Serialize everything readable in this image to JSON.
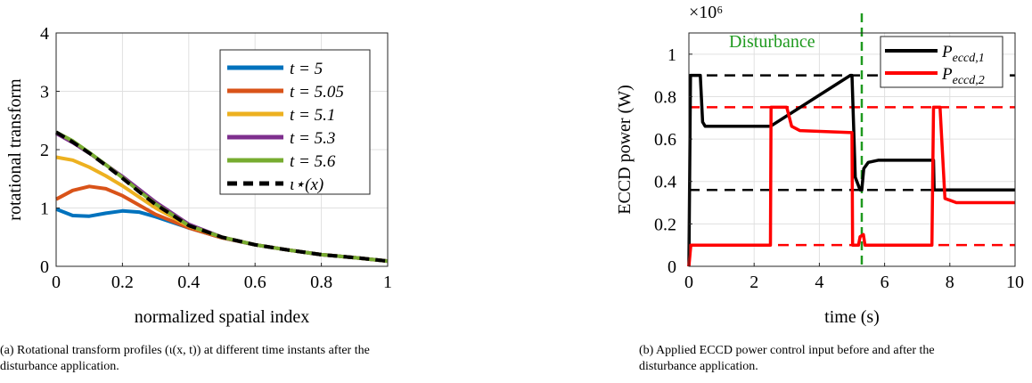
{
  "chart_data": [
    {
      "type": "line",
      "xlabel": "normalized spatial index",
      "ylabel": "rotational transform",
      "xlim": [
        0,
        1
      ],
      "ylim": [
        0,
        4
      ],
      "xticks": [
        "0",
        "0.2",
        "0.4",
        "0.6",
        "0.8",
        "1"
      ],
      "yticks": [
        "0",
        "1",
        "2",
        "3",
        "4"
      ],
      "grid": true,
      "legend_position": "top-right",
      "series": [
        {
          "name": "t = 5",
          "color": "#0072BD",
          "x": [
            0,
            0.05,
            0.1,
            0.15,
            0.2,
            0.25,
            0.3,
            0.4,
            0.5,
            0.6,
            0.7,
            0.8,
            0.9,
            1.0
          ],
          "y": [
            0.98,
            0.87,
            0.86,
            0.91,
            0.95,
            0.93,
            0.85,
            0.66,
            0.49,
            0.37,
            0.28,
            0.2,
            0.15,
            0.09
          ]
        },
        {
          "name": "t = 5.05",
          "color": "#D95319",
          "x": [
            0,
            0.05,
            0.1,
            0.15,
            0.2,
            0.25,
            0.3,
            0.4,
            0.5,
            0.6,
            0.7,
            0.8,
            0.9,
            1.0
          ],
          "y": [
            1.15,
            1.3,
            1.37,
            1.33,
            1.21,
            1.05,
            0.89,
            0.66,
            0.49,
            0.37,
            0.28,
            0.2,
            0.15,
            0.09
          ]
        },
        {
          "name": "t = 5.1",
          "color": "#EDB120",
          "x": [
            0,
            0.05,
            0.1,
            0.15,
            0.2,
            0.25,
            0.3,
            0.4,
            0.5,
            0.6,
            0.7,
            0.8,
            0.9,
            1.0
          ],
          "y": [
            1.87,
            1.82,
            1.7,
            1.55,
            1.38,
            1.19,
            1.0,
            0.69,
            0.5,
            0.37,
            0.28,
            0.2,
            0.15,
            0.09
          ]
        },
        {
          "name": "t = 5.3",
          "color": "#7E2F8E",
          "x": [
            0,
            0.05,
            0.1,
            0.15,
            0.2,
            0.25,
            0.3,
            0.4,
            0.5,
            0.6,
            0.7,
            0.8,
            0.9,
            1.0
          ],
          "y": [
            2.28,
            2.12,
            1.94,
            1.74,
            1.54,
            1.32,
            1.1,
            0.72,
            0.5,
            0.37,
            0.28,
            0.2,
            0.15,
            0.09
          ]
        },
        {
          "name": "t = 5.6",
          "color": "#77AC30",
          "x": [
            0,
            0.05,
            0.1,
            0.15,
            0.2,
            0.25,
            0.3,
            0.4,
            0.5,
            0.6,
            0.7,
            0.8,
            0.9,
            1.0
          ],
          "y": [
            2.3,
            2.15,
            1.95,
            1.74,
            1.52,
            1.29,
            1.07,
            0.7,
            0.5,
            0.37,
            0.28,
            0.2,
            0.15,
            0.09
          ]
        },
        {
          "name": "ι*(x)",
          "color": "#000000",
          "dashed": true,
          "x": [
            0,
            0.05,
            0.1,
            0.15,
            0.2,
            0.25,
            0.3,
            0.4,
            0.5,
            0.6,
            0.7,
            0.8,
            0.9,
            1.0
          ],
          "y": [
            2.3,
            2.13,
            1.94,
            1.73,
            1.51,
            1.28,
            1.06,
            0.7,
            0.5,
            0.37,
            0.28,
            0.2,
            0.15,
            0.09
          ]
        }
      ],
      "legend_labels": [
        "t = 5",
        "t = 5.05",
        "t = 5.1",
        "t = 5.3",
        "t = 5.6",
        "ι⋆(x)"
      ],
      "caption": "(a) Rotational transform profiles (ι(x, t)) at different time instants after the disturbance application."
    },
    {
      "type": "line",
      "xlabel": "time (s)",
      "ylabel": "ECCD power (W)",
      "multiplier": "×10⁶",
      "xlim": [
        0,
        10
      ],
      "ylim": [
        0,
        1.1
      ],
      "xticks": [
        "0",
        "2",
        "4",
        "6",
        "8",
        "10"
      ],
      "yticks": [
        "0",
        "0.2",
        "0.4",
        "0.6",
        "0.8",
        "1"
      ],
      "grid": true,
      "legend_position": "top-right",
      "annotation": "Disturbance",
      "disturbance_time": 5.3,
      "series": [
        {
          "name": "P_eccd,1",
          "color": "#000000",
          "x": [
            0,
            0.05,
            0.1,
            0.35,
            0.42,
            0.5,
            2.5,
            4.95,
            5.0,
            5.1,
            5.25,
            5.3,
            5.36,
            5.5,
            5.8,
            6.0,
            7.5,
            7.52,
            10
          ],
          "y": [
            0.0,
            0.9,
            0.9,
            0.9,
            0.68,
            0.66,
            0.66,
            0.9,
            0.9,
            0.42,
            0.36,
            0.36,
            0.46,
            0.49,
            0.5,
            0.5,
            0.5,
            0.36,
            0.36
          ]
        },
        {
          "name": "P_eccd,2",
          "color": "#FF0000",
          "x": [
            0,
            0.06,
            0.1,
            2.5,
            2.52,
            3.0,
            3.15,
            3.4,
            5.0,
            5.02,
            5.2,
            5.25,
            5.35,
            5.4,
            7.45,
            7.5,
            7.7,
            7.85,
            8.2,
            10
          ],
          "y": [
            0.0,
            0.1,
            0.1,
            0.1,
            0.75,
            0.75,
            0.66,
            0.64,
            0.63,
            0.1,
            0.1,
            0.14,
            0.15,
            0.1,
            0.1,
            0.75,
            0.75,
            0.32,
            0.3,
            0.3
          ]
        }
      ],
      "reference_lines": [
        {
          "color": "#000000",
          "y": 0.9
        },
        {
          "color": "#000000",
          "y": 0.36
        },
        {
          "color": "#FF0000",
          "y": 0.75
        },
        {
          "color": "#FF0000",
          "y": 0.1
        }
      ],
      "legend_labels": [
        {
          "main": "P",
          "sub": "eccd,1"
        },
        {
          "main": "P",
          "sub": "eccd,2"
        }
      ],
      "caption": "(b) Applied ECCD power control input before and after the disturbance application."
    }
  ]
}
